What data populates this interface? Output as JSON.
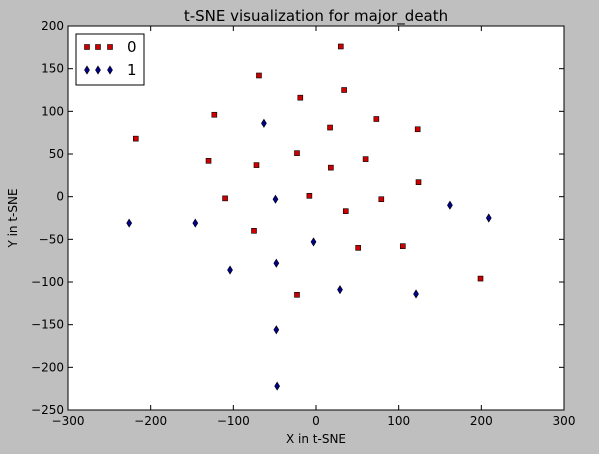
{
  "chart_data": {
    "type": "scatter",
    "title": "t-SNE visualization for major_death",
    "xlabel": "X in t-SNE",
    "ylabel": "Y in t-SNE",
    "xlim": [
      -300,
      300
    ],
    "ylim": [
      -250,
      200
    ],
    "xticks": [
      -300,
      -200,
      -100,
      0,
      100,
      200,
      300
    ],
    "yticks": [
      -250,
      -200,
      -150,
      -100,
      -50,
      0,
      50,
      100,
      150,
      200
    ],
    "grid": false,
    "legend_position": "top-left",
    "series": [
      {
        "name": "0",
        "marker": "square",
        "color": "#cc0000",
        "points": [
          [
            -218,
            68
          ],
          [
            -123,
            96
          ],
          [
            -69,
            142
          ],
          [
            -19,
            116
          ],
          [
            30,
            176
          ],
          [
            34,
            125
          ],
          [
            73,
            91
          ],
          [
            123,
            79
          ],
          [
            17,
            81
          ],
          [
            -130,
            42
          ],
          [
            -72,
            37
          ],
          [
            -23,
            51
          ],
          [
            18,
            34
          ],
          [
            60,
            44
          ],
          [
            124,
            17
          ],
          [
            -110,
            -2
          ],
          [
            -8,
            1
          ],
          [
            36,
            -17
          ],
          [
            79,
            -3
          ],
          [
            -75,
            -40
          ],
          [
            51,
            -60
          ],
          [
            105,
            -58
          ],
          [
            -23,
            -115
          ],
          [
            199,
            -96
          ]
        ]
      },
      {
        "name": "1",
        "marker": "diamond",
        "color": "#00008b",
        "points": [
          [
            -63,
            86
          ],
          [
            -49,
            -3
          ],
          [
            -226,
            -31
          ],
          [
            -146,
            -31
          ],
          [
            -104,
            -86
          ],
          [
            -48,
            -78
          ],
          [
            -3,
            -53
          ],
          [
            162,
            -10
          ],
          [
            209,
            -25
          ],
          [
            29,
            -109
          ],
          [
            121,
            -114
          ],
          [
            -48,
            -156
          ],
          [
            -47,
            -222
          ]
        ]
      }
    ]
  }
}
